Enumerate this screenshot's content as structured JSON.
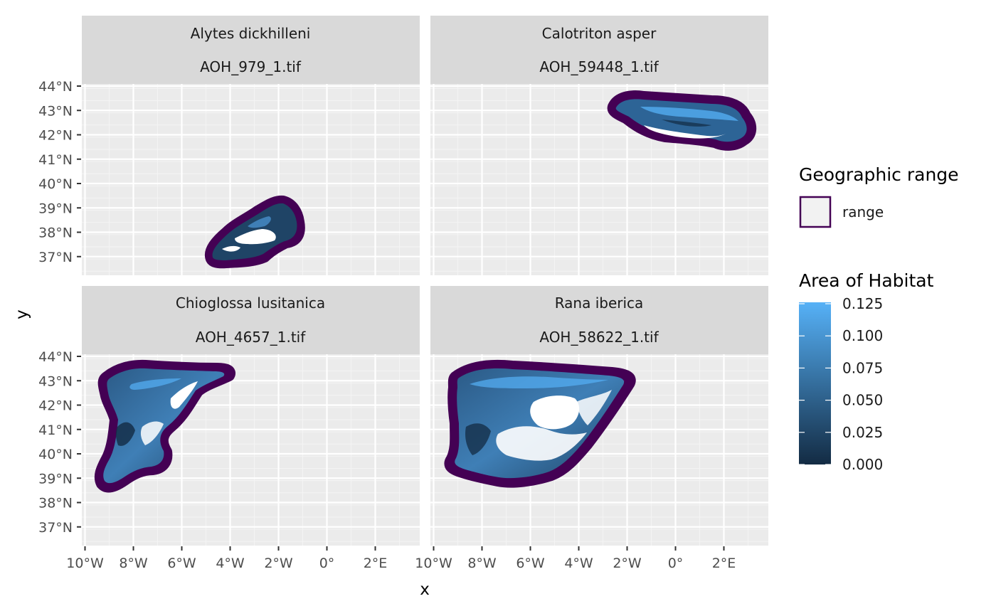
{
  "facets": [
    {
      "species": "Alytes dickhilleni",
      "file": "AOH_979_1.tif"
    },
    {
      "species": "Calotriton asper",
      "file": "AOH_59448_1.tif"
    },
    {
      "species": "Chioglossa lusitanica",
      "file": "AOH_4657_1.tif"
    },
    {
      "species": "Rana iberica",
      "file": "AOH_58622_1.tif"
    }
  ],
  "axes": {
    "x_title": "x",
    "y_title": "y",
    "x_ticks": [
      "10°W",
      "8°W",
      "6°W",
      "4°W",
      "2°W",
      "0°",
      "2°E"
    ],
    "y_ticks": [
      "44°N",
      "43°N",
      "42°N",
      "41°N",
      "40°N",
      "39°N",
      "38°N",
      "37°N"
    ]
  },
  "legend": {
    "range_title": "Geographic range",
    "range_label": "range",
    "habitat_title": "Area of Habitat",
    "habitat_ticks": [
      "0.125",
      "0.100",
      "0.075",
      "0.050",
      "0.025",
      "0.000"
    ]
  },
  "colors": {
    "panel_background": "#ebebeb",
    "strip_background": "#d9d9d9",
    "range_outline": "#440154",
    "habitat_low": "#132b43",
    "habitat_high": "#56b1f7"
  },
  "map_data": {
    "x_range_deg": [
      -10,
      4
    ],
    "y_range_deg": [
      36.4,
      44
    ],
    "x_tick_values": [
      -10,
      -8,
      -6,
      -4,
      -2,
      0,
      2
    ],
    "y_tick_values": [
      44,
      43,
      42,
      41,
      40,
      39,
      38,
      37
    ]
  }
}
